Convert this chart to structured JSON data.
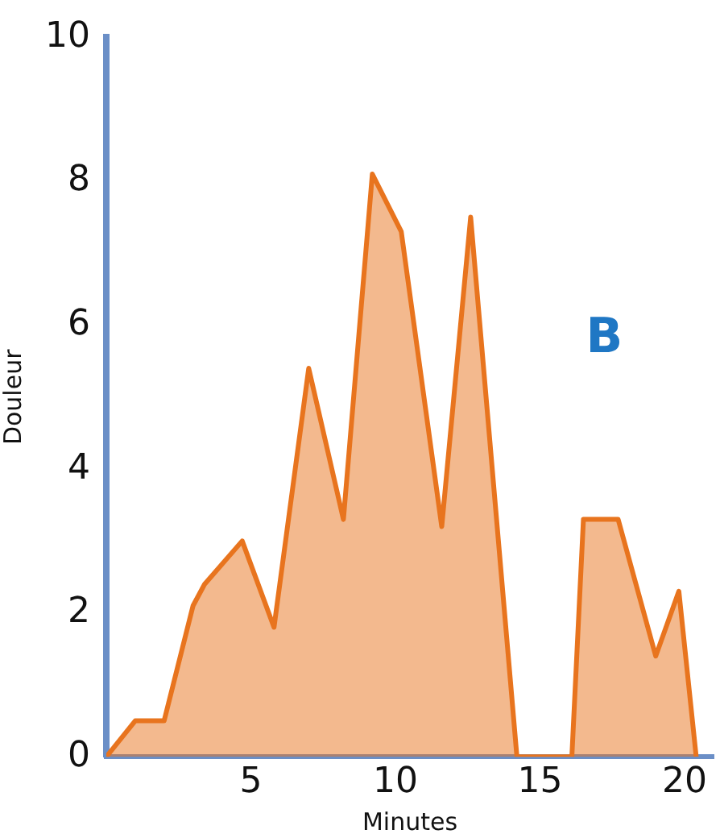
{
  "chart_data": {
    "type": "area",
    "xlabel": "Minutes",
    "ylabel": "Douleur",
    "annotations": [
      "B"
    ],
    "series": [
      {
        "color": "#e8741e",
        "x": [
          0,
          1,
          2,
          3,
          3.4,
          4.7,
          5.8,
          7,
          8.2,
          9.2,
          10.2,
          11.6,
          12.6,
          14.2,
          16.1,
          16.5,
          17.7,
          19,
          19.8,
          20.4
        ],
        "values": [
          0,
          0.5,
          0.5,
          2.1,
          2.4,
          3,
          1.8,
          5.4,
          3.3,
          8.1,
          7.3,
          3.2,
          7.5,
          0,
          0,
          3.3,
          3.3,
          1.4,
          2.3,
          0
        ]
      }
    ],
    "xlim": [
      0,
      21
    ],
    "xticks": [
      5,
      10,
      15,
      20
    ],
    "ylim": [
      0,
      10
    ],
    "yticks": [
      0,
      2,
      4,
      6,
      8,
      10
    ],
    "grid": false,
    "legend": false,
    "marker": "none",
    "line_style": "solid"
  }
}
